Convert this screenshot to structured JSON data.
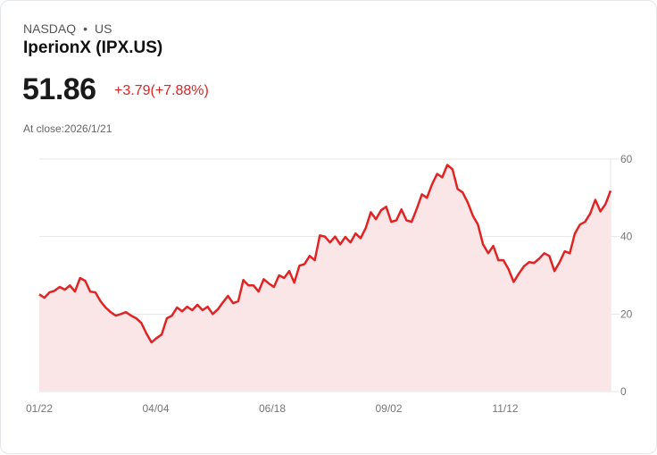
{
  "header": {
    "exchange": "NASDAQ",
    "separator": "•",
    "region": "US",
    "name": "IperionX (IPX.US)",
    "price": "51.86",
    "change": "+3.79(+7.88%)",
    "close_label": "At close:2026/1/21"
  },
  "colors": {
    "line": "#e02424",
    "fill": "#fbe6e7",
    "grid": "#e6e6e6"
  },
  "chart_data": {
    "type": "area",
    "title": "IperionX (IPX.US)",
    "xlabel": "",
    "ylabel": "",
    "ylim": [
      0,
      60
    ],
    "yticks": [
      0,
      20,
      40,
      60
    ],
    "xtick_labels": [
      "01/22",
      "04/04",
      "06/18",
      "09/02",
      "11/12"
    ],
    "grid": true,
    "values": [
      25.1,
      24.2,
      25.6,
      26,
      27,
      26.3,
      27.4,
      25.8,
      29.3,
      28.6,
      25.8,
      25.6,
      23.3,
      21.7,
      20.5,
      19.6,
      20,
      20.5,
      19.6,
      18.9,
      17.7,
      15,
      12.7,
      13.8,
      14.7,
      18.9,
      19.6,
      21.7,
      20.7,
      21.9,
      21,
      22.4,
      21,
      21.9,
      20,
      21.2,
      23,
      24.7,
      22.8,
      23.3,
      28.8,
      27.4,
      27.4,
      25.8,
      29,
      27.9,
      27,
      30,
      29.3,
      31.1,
      28.1,
      32.5,
      32.9,
      35,
      33.9,
      40.3,
      40,
      38.5,
      40,
      38,
      39.9,
      38.5,
      40.8,
      39.6,
      42.2,
      46.3,
      44.5,
      46.8,
      47.7,
      43.8,
      44.2,
      47,
      44.2,
      43.8,
      47.2,
      50.9,
      50,
      53.5,
      56.2,
      55.3,
      58.5,
      57.4,
      52.3,
      51.4,
      48.8,
      45.4,
      43.1,
      38,
      35.7,
      37.6,
      33.9,
      33.9,
      31.6,
      28.3,
      30.4,
      32.3,
      33.4,
      33.2,
      34.3,
      35.7,
      35,
      31.1,
      33.4,
      36.2,
      35.7,
      40.8,
      43.1,
      43.8,
      45.9,
      49.5,
      46.5,
      48.4,
      51.86
    ]
  }
}
